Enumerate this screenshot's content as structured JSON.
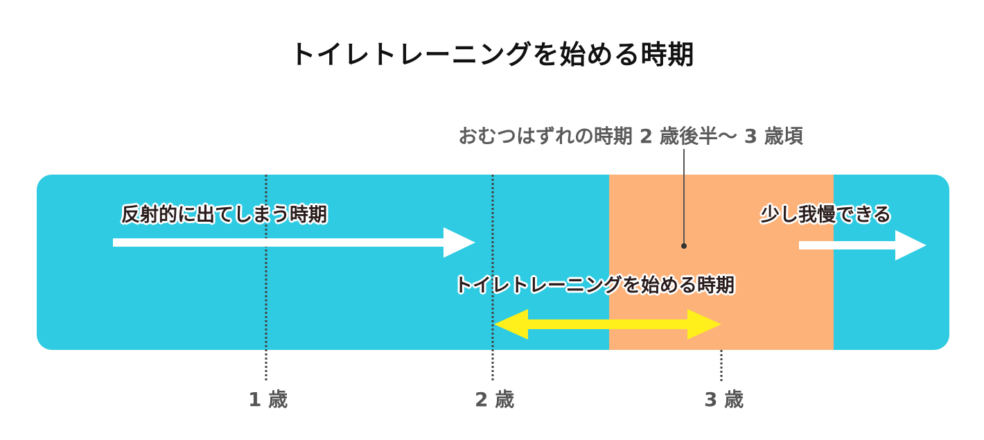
{
  "title": "トイレトレーニングを始める時期",
  "callout": "おむつはずれの時期 2 歳後半～ 3 歳頃",
  "labels": {
    "reflex": "反射的に出てしまう時期",
    "hold": "少し我慢できる",
    "start": "トイレトレーニングを始める時期"
  },
  "ages": [
    "1 歳",
    "2 歳",
    "3 歳"
  ],
  "colors": {
    "band": "#2ecbe2",
    "orange_zone": "#fdb27a",
    "white_arrow": "#ffffff",
    "yellow_arrow": "#fff01c",
    "dotted_line": "#444444"
  }
}
